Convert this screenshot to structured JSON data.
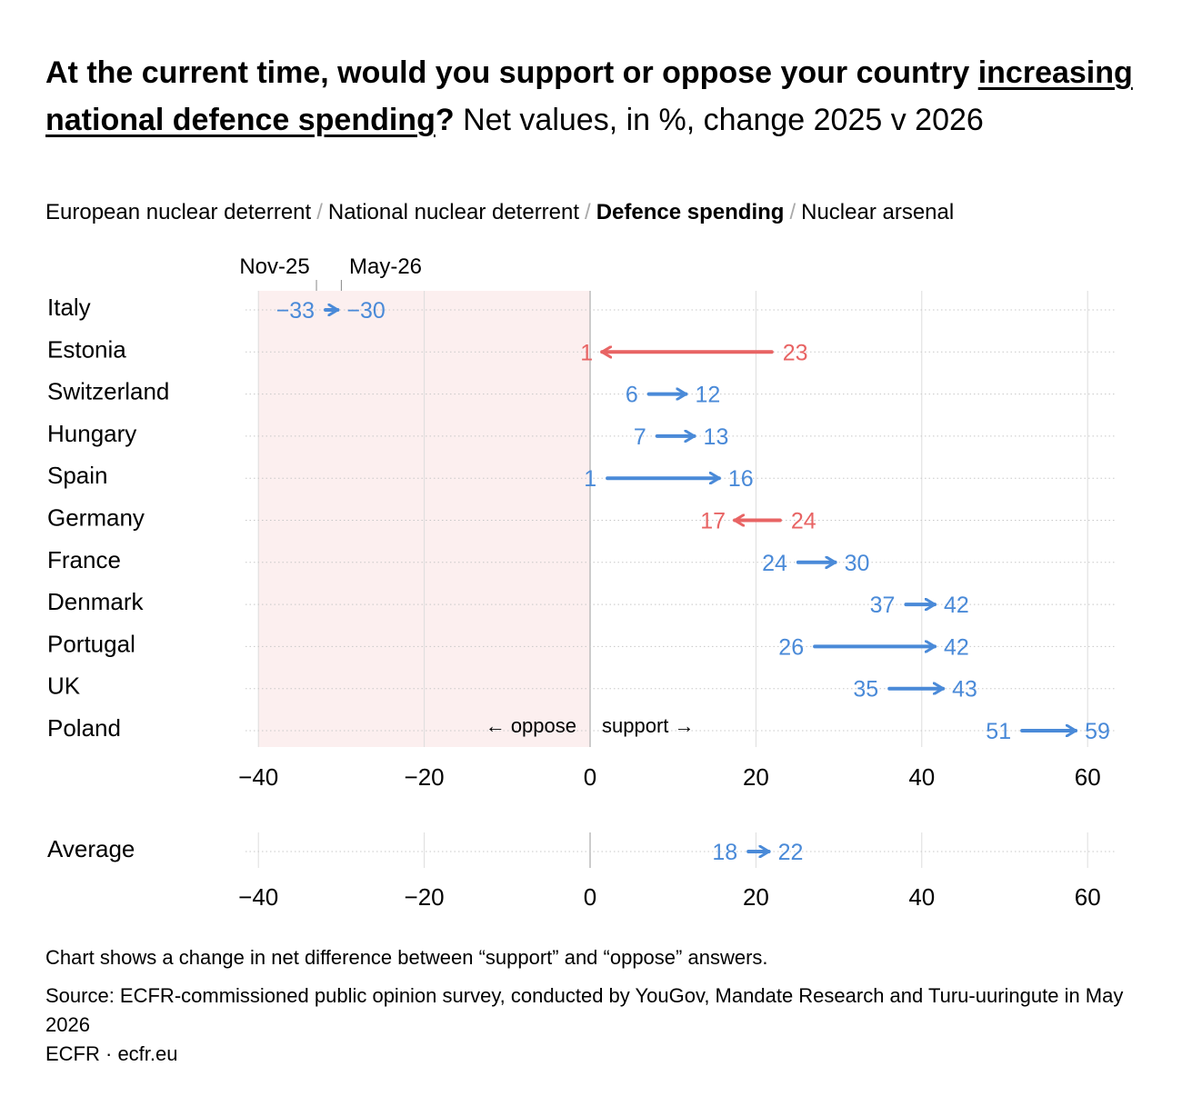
{
  "title": {
    "bold_text": "At the current time, would you support or oppose your country ",
    "underlined_text": "increasing national defence spending",
    "question_mark": "?",
    "rest_text": " Net values, in %, change 2025 v 2026"
  },
  "tabs": [
    {
      "label": "European nuclear deterrent",
      "active": false
    },
    {
      "label": "National nuclear deterrent",
      "active": false
    },
    {
      "label": "Defence spending",
      "active": true
    },
    {
      "label": "Nuclear arsenal",
      "active": false
    }
  ],
  "tab_separator": "/",
  "colors": {
    "increase": "#4a8ad8",
    "decrease": "#e86464",
    "oppose_shade": "#fcefef",
    "grid": "#dddddd",
    "dots": "#c8c8c8"
  },
  "chart_data": {
    "type": "arrow-dumbbell",
    "legend": {
      "from_label": "Nov-25",
      "to_label": "May-26"
    },
    "xlim": [
      -40,
      60
    ],
    "xticks": [
      -40,
      -20,
      0,
      20,
      40,
      60
    ],
    "xtick_labels": [
      "−40",
      "−20",
      "0",
      "20",
      "40",
      "60"
    ],
    "oppose_label": "← oppose",
    "support_label": "support →",
    "series": [
      {
        "category": "Italy",
        "from": -33,
        "to": -30,
        "from_label": "−33",
        "to_label": "−30"
      },
      {
        "category": "Estonia",
        "from": 23,
        "to": 1,
        "from_label": "23",
        "to_label": "1"
      },
      {
        "category": "Switzerland",
        "from": 6,
        "to": 12,
        "from_label": "6",
        "to_label": "12"
      },
      {
        "category": "Hungary",
        "from": 7,
        "to": 13,
        "from_label": "7",
        "to_label": "13"
      },
      {
        "category": "Spain",
        "from": 1,
        "to": 16,
        "from_label": "1",
        "to_label": "16"
      },
      {
        "category": "Germany",
        "from": 24,
        "to": 17,
        "from_label": "24",
        "to_label": "17"
      },
      {
        "category": "France",
        "from": 24,
        "to": 30,
        "from_label": "24",
        "to_label": "30"
      },
      {
        "category": "Denmark",
        "from": 37,
        "to": 42,
        "from_label": "37",
        "to_label": "42"
      },
      {
        "category": "Portugal",
        "from": 26,
        "to": 42,
        "from_label": "26",
        "to_label": "42"
      },
      {
        "category": "UK",
        "from": 35,
        "to": 43,
        "from_label": "35",
        "to_label": "43"
      },
      {
        "category": "Poland",
        "from": 51,
        "to": 59,
        "from_label": "51",
        "to_label": "59"
      }
    ],
    "average": {
      "category": "Average",
      "from": 18,
      "to": 22,
      "from_label": "18",
      "to_label": "22"
    }
  },
  "notes": {
    "note": "Chart shows a change in net difference between “support” and “oppose” answers.",
    "source": "Source: ECFR-commissioned public opinion survey, conducted by YouGov, Mandate Research and Turu-uuringute in May 2026",
    "credit": "ECFR · ecfr.eu"
  }
}
